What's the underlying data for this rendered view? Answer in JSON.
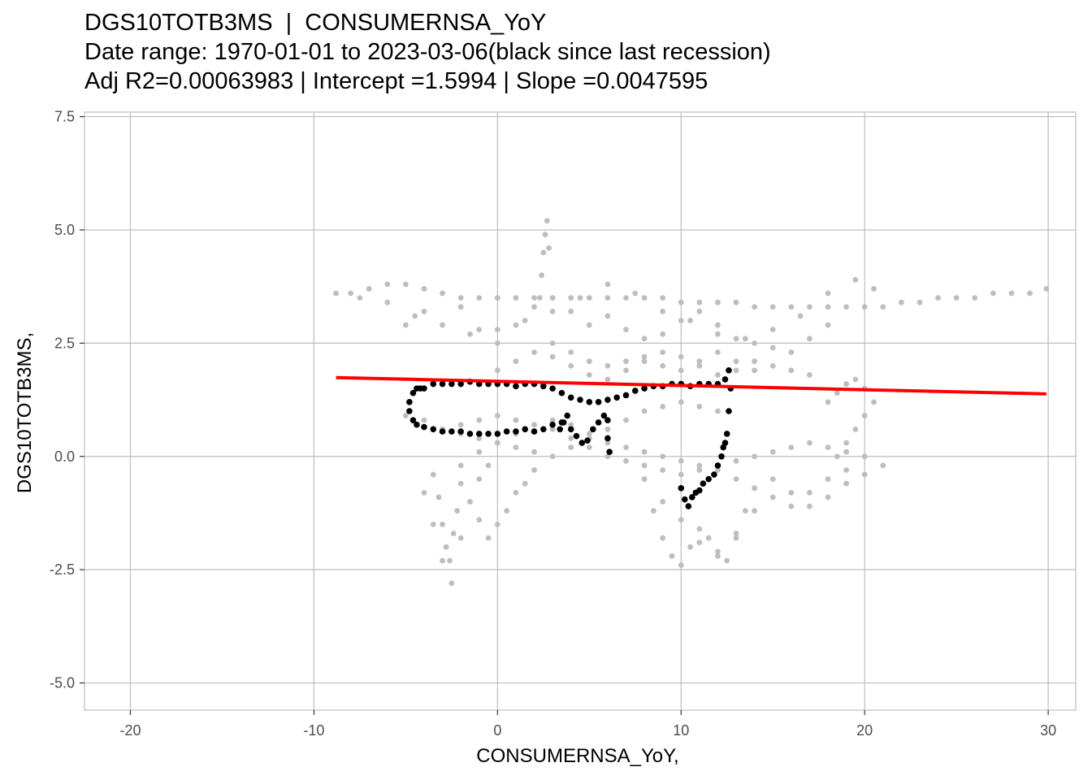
{
  "title": {
    "line1": "DGS10TOTB3MS  |  CONSUMERNSA_YoY",
    "line2": "Date range: 1970-01-01 to 2023-03-06(black since last recession)",
    "line3": "Adj R2=0.00063983 | Intercept =1.5994 | Slope =0.0047595"
  },
  "chart_data": {
    "type": "scatter",
    "xlabel": "CONSUMERNSA_YoY,",
    "ylabel": "DGS10TOTB3MS,",
    "xlim": [
      -22.5,
      31.5
    ],
    "ylim": [
      -5.6,
      7.6
    ],
    "x_ticks": [
      -20,
      -10,
      0,
      10,
      20,
      30
    ],
    "x_tick_labels": [
      "-20",
      "-10",
      "0",
      "10",
      "20",
      "30"
    ],
    "y_ticks": [
      -5.0,
      -2.5,
      0.0,
      2.5,
      5.0,
      7.5
    ],
    "y_tick_labels": [
      "-5.0",
      "-2.5",
      "0.0",
      "2.5",
      "5.0",
      "7.5"
    ],
    "grid": true,
    "colors": {
      "earlier": "#bebebe",
      "since_last_recession": "#000000",
      "fit": "#ff0000",
      "grid": "#bebebe"
    },
    "fit_line": {
      "x": [
        -8.8,
        29.9
      ],
      "y": [
        1.74,
        1.38
      ]
    },
    "series": [
      {
        "color": "#bebebe",
        "x": [
          -8.8,
          -8,
          -7,
          -6,
          -5,
          -4,
          -3,
          -2,
          -1,
          0,
          1,
          2,
          3,
          4,
          5,
          6,
          7,
          8,
          9,
          10,
          11,
          12,
          13,
          14,
          15,
          16,
          17,
          18,
          19,
          20,
          21,
          22,
          23,
          24,
          25,
          26,
          27,
          28,
          29,
          29.9,
          -7.5,
          -6,
          -4.5,
          -3,
          -1.5,
          0,
          1.5,
          3,
          4.5,
          6,
          7.5,
          9,
          10.5,
          12,
          13.5,
          15,
          16.5,
          18,
          19.5,
          20.5,
          -5,
          -4,
          -3,
          -2,
          -1,
          0,
          1,
          2,
          3,
          4,
          5,
          6,
          7,
          8,
          9,
          10,
          11,
          12,
          13,
          14,
          15,
          16,
          17,
          18,
          -3.5,
          -3.2,
          -3,
          -2.8,
          -2.6,
          -2.4,
          -2.2,
          -2,
          -1.5,
          -1,
          -0.5,
          0,
          0.5,
          1,
          1.5,
          2,
          -4,
          -3.5,
          -3,
          -2.5,
          -2,
          -1.5,
          -1,
          -0.5,
          2.3,
          2.4,
          2.5,
          2.6,
          2.7,
          2.8,
          8,
          8.5,
          9,
          9.5,
          10,
          10.5,
          11,
          11.5,
          12,
          12.5,
          13,
          13.5,
          14,
          15,
          16,
          17,
          18,
          19,
          20,
          21,
          3,
          4,
          5,
          6,
          7,
          8,
          9,
          10,
          11,
          12,
          13,
          14,
          -3,
          -2,
          -1,
          0,
          1,
          2,
          3,
          4,
          5,
          6,
          7,
          8,
          9,
          10,
          11,
          12,
          13,
          14,
          15,
          16,
          17,
          18,
          19,
          20,
          18,
          18.5,
          19,
          19.5,
          20,
          20.5,
          20,
          19.5,
          19,
          18.5,
          13,
          14,
          15,
          16,
          17,
          18,
          19,
          20,
          -5,
          -4,
          -3,
          -2,
          -1,
          0,
          1,
          2,
          3,
          4,
          5,
          6,
          7,
          8,
          9,
          10,
          11,
          12,
          0,
          1,
          2,
          3,
          4,
          5,
          6,
          7,
          8,
          9,
          10,
          11,
          12,
          13,
          14,
          15,
          16,
          17,
          9,
          10,
          11,
          12,
          13,
          14,
          -2,
          -1,
          0,
          1,
          2,
          3,
          4,
          5,
          6,
          7,
          8,
          9,
          10,
          11,
          12
        ],
        "y": [
          3.6,
          3.6,
          3.7,
          3.8,
          3.8,
          3.7,
          3.6,
          3.5,
          3.5,
          3.5,
          3.5,
          3.5,
          3.5,
          3.5,
          3.5,
          3.5,
          3.5,
          3.5,
          3.5,
          3.4,
          3.4,
          3.4,
          3.4,
          3.3,
          3.3,
          3.3,
          3.3,
          3.3,
          3.3,
          3.3,
          3.3,
          3.4,
          3.4,
          3.5,
          3.5,
          3.5,
          3.6,
          3.6,
          3.6,
          3.7,
          3.5,
          3.4,
          3.1,
          2.9,
          2.7,
          2.8,
          3.0,
          3.2,
          3.5,
          3.8,
          3.6,
          3.2,
          3.0,
          2.7,
          2.6,
          2.8,
          3.1,
          3.6,
          3.9,
          3.7,
          2.9,
          3.2,
          3.6,
          3.3,
          2.8,
          2.5,
          2.9,
          3.3,
          3.5,
          3.2,
          2.9,
          3.1,
          2.8,
          2.6,
          2.7,
          3.0,
          3.2,
          2.9,
          2.6,
          2.5,
          2.4,
          2.3,
          2.6,
          2.9,
          -0.4,
          -0.9,
          -1.5,
          -2.0,
          -2.3,
          -1.7,
          -1.2,
          -0.6,
          -1.0,
          -1.4,
          -1.8,
          -1.5,
          -1.2,
          -0.8,
          -0.6,
          -0.3,
          -0.8,
          -1.5,
          -2.3,
          -2.8,
          -1.8,
          -1.0,
          -0.5,
          -0.2,
          3.5,
          4.0,
          4.5,
          4.9,
          5.2,
          4.6,
          -0.5,
          -1.2,
          -1.8,
          -2.2,
          -2.4,
          -2.0,
          -1.6,
          -1.8,
          -2.1,
          -2.3,
          -1.8,
          -1.2,
          -0.7,
          -0.5,
          -0.8,
          -1.1,
          -0.9,
          -0.6,
          -0.4,
          -0.2,
          2.5,
          2.3,
          2.1,
          2.0,
          2.1,
          2.2,
          2.0,
          1.9,
          2.1,
          2.3,
          2.1,
          1.9,
          0.6,
          0.7,
          0.8,
          0.9,
          0.8,
          0.7,
          0.6,
          0.4,
          0.2,
          0.0,
          -0.1,
          -0.2,
          -0.3,
          -0.4,
          -0.3,
          -0.2,
          -0.1,
          0.0,
          0.1,
          0.2,
          0.3,
          0.2,
          0.1,
          0.0,
          1.2,
          1.4,
          1.6,
          1.7,
          1.5,
          1.2,
          0.9,
          0.6,
          0.3,
          0.0,
          -0.5,
          -0.7,
          -0.9,
          -1.1,
          -0.8,
          -0.5,
          -0.3,
          0.0,
          0.9,
          0.8,
          0.6,
          0.5,
          0.4,
          0.3,
          0.2,
          0.1,
          0.0,
          0.2,
          0.4,
          0.6,
          0.8,
          1.0,
          1.1,
          1.2,
          1.1,
          1.0,
          1.9,
          2.1,
          2.3,
          2.2,
          2.0,
          1.8,
          1.7,
          1.9,
          2.1,
          2.3,
          2.2,
          2.0,
          1.8,
          1.9,
          2.1,
          2.0,
          1.9,
          1.8,
          -1.0,
          -1.4,
          -1.9,
          -2.2,
          -1.7,
          -1.2,
          -0.2,
          0.1,
          0.3,
          0.5,
          0.7,
          0.8,
          0.7,
          0.5,
          0.3,
          0.2,
          0.1,
          0.0,
          -0.1,
          -0.2,
          -0.3
        ]
      },
      {
        "color": "#000000",
        "x": [
          -4.8,
          -4.6,
          -4.4,
          -4.2,
          -4.0,
          -3.5,
          -3.0,
          -2.5,
          -2.0,
          -1.5,
          -1.0,
          -0.5,
          0.0,
          0.5,
          1.0,
          1.5,
          2.0,
          2.5,
          3.0,
          3.5,
          4.0,
          4.5,
          5.0,
          5.5,
          6.0,
          6.5,
          7.0,
          7.5,
          8.0,
          8.5,
          9.0,
          9.5,
          10.0,
          10.5,
          11.0,
          11.5,
          12.0,
          12.4,
          12.6,
          12.7,
          12.6,
          12.5,
          12.4,
          12.3,
          12.2,
          12.0,
          11.8,
          11.5,
          11.2,
          11.0,
          10.8,
          10.6,
          10.4,
          10.2,
          10.0,
          -4.8,
          -4.6,
          -4.4,
          -4.0,
          -3.5,
          -3.0,
          -2.5,
          -2.0,
          -1.5,
          -1.0,
          -0.5,
          0.0,
          0.5,
          1.0,
          1.5,
          2.0,
          2.5,
          3.0,
          3.5,
          4.0,
          4.3,
          4.6,
          4.9,
          5.2,
          5.5,
          5.8,
          6.0,
          6.0,
          6.1,
          3.8,
          3.6,
          3.4
        ],
        "y": [
          1.2,
          1.4,
          1.5,
          1.5,
          1.5,
          1.6,
          1.6,
          1.6,
          1.6,
          1.65,
          1.6,
          1.6,
          1.6,
          1.6,
          1.55,
          1.6,
          1.6,
          1.55,
          1.5,
          1.4,
          1.3,
          1.25,
          1.2,
          1.2,
          1.25,
          1.3,
          1.35,
          1.45,
          1.5,
          1.55,
          1.55,
          1.6,
          1.6,
          1.55,
          1.6,
          1.6,
          1.6,
          1.7,
          1.9,
          1.5,
          1.0,
          0.5,
          0.3,
          0.2,
          0.0,
          -0.2,
          -0.4,
          -0.5,
          -0.6,
          -0.75,
          -0.8,
          -0.9,
          -1.1,
          -0.95,
          -0.7,
          1.0,
          0.8,
          0.7,
          0.65,
          0.6,
          0.55,
          0.55,
          0.55,
          0.5,
          0.5,
          0.5,
          0.5,
          0.55,
          0.55,
          0.6,
          0.55,
          0.6,
          0.7,
          0.75,
          0.6,
          0.45,
          0.3,
          0.35,
          0.6,
          0.75,
          0.9,
          0.8,
          0.4,
          0.1,
          0.9,
          0.75,
          0.6
        ]
      }
    ]
  }
}
